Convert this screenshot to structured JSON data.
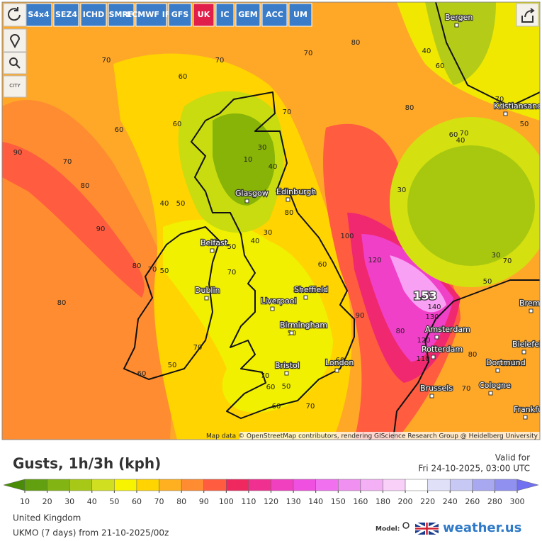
{
  "toolbar": {
    "models": [
      "S4x4",
      "SEZ4",
      "ICHD",
      "SMRF",
      "ECMWF IFS",
      "GFS",
      "UK",
      "IC",
      "GEM",
      "ACC",
      "UM"
    ],
    "active_model": "UK",
    "city_button": "CITY"
  },
  "map": {
    "cities": [
      "Bergen",
      "Kristiansand",
      "Glasgow",
      "Edinburgh",
      "Belfast",
      "Dublin",
      "Liverpool",
      "Sheffield",
      "Birmingham",
      "Bristol",
      "London",
      "Amsterdam",
      "Rotterdam",
      "Brussels",
      "Dortmund",
      "Cologne",
      "Bielefeld",
      "Bremen",
      "Frankfurt am Main"
    ],
    "contour_labels": [
      70,
      70,
      60,
      70,
      80,
      60,
      70,
      90,
      80,
      90,
      70,
      40,
      50,
      60,
      30,
      40,
      10,
      30,
      50,
      40,
      70,
      60,
      80,
      70,
      50,
      80,
      70,
      60,
      50,
      70,
      60,
      50,
      60,
      70,
      60,
      50,
      100,
      120,
      140,
      130,
      120,
      110,
      90,
      80,
      30,
      40,
      60,
      70,
      30,
      50,
      70,
      40,
      80,
      60,
      50,
      70,
      80,
      70,
      80
    ],
    "max_label": 153,
    "attribution": "Map data © OpenStreetMap contributors, rendering GIScience Research Group @ Heidelberg University"
  },
  "legend": {
    "title": "Gusts, 1h/3h (kph)",
    "valid_label": "Valid for",
    "valid_time": "Fri 24-10-2025, 03:00 UTC",
    "ticks": [
      10,
      20,
      30,
      40,
      50,
      60,
      70,
      80,
      90,
      100,
      110,
      120,
      130,
      140,
      150,
      160,
      180,
      200,
      220,
      240,
      260,
      280,
      300
    ],
    "colors": [
      "#4a8c08",
      "#62a010",
      "#82b414",
      "#a8c818",
      "#d0e020",
      "#f8f400",
      "#ffd400",
      "#ffb020",
      "#ff8c30",
      "#ff5c40",
      "#f02860",
      "#f03090",
      "#f040c0",
      "#f050e0",
      "#f070f0",
      "#f090f0",
      "#f4b0f4",
      "#f8d0f8",
      "#ffffff",
      "#e0e0f8",
      "#c8c8f4",
      "#a8a8f0",
      "#9090f0",
      "#7070f0"
    ],
    "region": "United Kingdom",
    "model_run": "UKMO (7 days) from 21-10-2025/00z",
    "model_label": "Model:",
    "brand": "weather.us"
  }
}
